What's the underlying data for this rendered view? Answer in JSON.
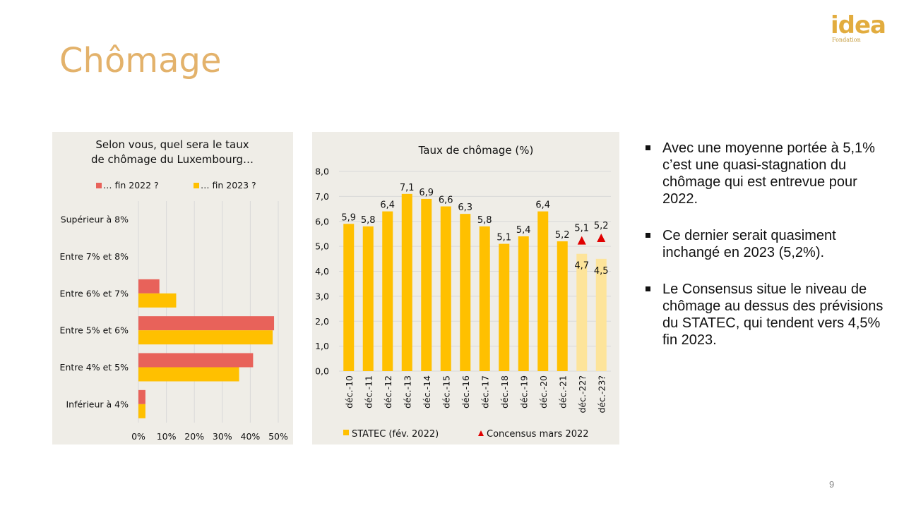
{
  "slide": {
    "title": "Chômage",
    "page_number": "9",
    "logo": {
      "text": "idea",
      "subtext": "Fondation"
    }
  },
  "bullets": [
    "Avec une moyenne portée à 5,1% c’est une quasi-stagnation du chômage qui est entrevue pour 2022.",
    "Ce dernier serait quasiment inchangé en 2023 (5,2%).",
    "Le Consensus situe le niveau de chômage au dessus des prévisions du STATEC, qui tendent vers 4,5% fin 2023."
  ],
  "colors": {
    "red": "#E8625A",
    "yellow": "#FFC000",
    "light_yellow": "#FDE49A",
    "triangle": "#E00000",
    "title": "#E3B26B",
    "panel": "#EFEDE7"
  },
  "chart_data": [
    {
      "type": "bar",
      "orientation": "horizontal",
      "title": "Selon vous, quel sera le taux de chômage du Luxembourg…",
      "title_lines": [
        "Selon vous, quel sera le taux",
        "de chômage du Luxembourg…"
      ],
      "categories": [
        "Supérieur à 8%",
        "Entre 7% et 8%",
        "Entre 6% et 7%",
        "Entre 5% et 6%",
        "Entre 4% et 5%",
        "Inférieur à 4%"
      ],
      "series": [
        {
          "name": "… fin 2022 ?",
          "color": "#E8625A",
          "values": [
            0,
            0,
            7.5,
            48.5,
            41,
            2.5
          ]
        },
        {
          "name": "… fin 2023 ?",
          "color": "#FFC000",
          "values": [
            0,
            0,
            13.5,
            48,
            36,
            2.5
          ]
        }
      ],
      "xlim": [
        0,
        50
      ],
      "xticks": [
        "0%",
        "10%",
        "20%",
        "30%",
        "40%",
        "50%"
      ],
      "grid": true,
      "legend": "top"
    },
    {
      "type": "bar",
      "title": "Taux de chômage (%)",
      "categories": [
        "déc.-10",
        "déc.-11",
        "déc.-12",
        "déc.-13",
        "déc.-14",
        "déc.-15",
        "déc.-16",
        "déc.-17",
        "déc.-18",
        "déc.-19",
        "déc.-20",
        "déc.-21",
        "déc.-22?",
        "déc.-23?"
      ],
      "series": [
        {
          "name": "STATEC (fév. 2022)",
          "color": "#FFC000",
          "forecast_color": "#FDE49A",
          "values": [
            5.9,
            5.8,
            6.4,
            7.1,
            6.9,
            6.6,
            6.3,
            5.8,
            5.1,
            5.4,
            6.4,
            5.2,
            4.7,
            4.5
          ],
          "labels": [
            "5,9",
            "5,8",
            "6,4",
            "7,1",
            "6,9",
            "6,6",
            "6,3",
            "5,8",
            "5,1",
            "5,4",
            "6,4",
            "5,2",
            "4,7",
            "4,5"
          ],
          "forecast": [
            false,
            false,
            false,
            false,
            false,
            false,
            false,
            false,
            false,
            false,
            false,
            false,
            true,
            true
          ]
        },
        {
          "name": "Concensus mars 2022",
          "marker": "triangle",
          "color": "#E00000",
          "values": [
            null,
            null,
            null,
            null,
            null,
            null,
            null,
            null,
            null,
            null,
            null,
            null,
            5.1,
            5.2
          ],
          "labels": [
            "",
            "",
            "",
            "",
            "",
            "",
            "",
            "",
            "",
            "",
            "",
            "",
            "5,1",
            "5,2"
          ]
        }
      ],
      "ylim": [
        0,
        8
      ],
      "yticks": [
        "0,0",
        "1,0",
        "2,0",
        "3,0",
        "4,0",
        "5,0",
        "6,0",
        "7,0",
        "8,0"
      ],
      "grid": true,
      "legend": "bottom"
    }
  ]
}
